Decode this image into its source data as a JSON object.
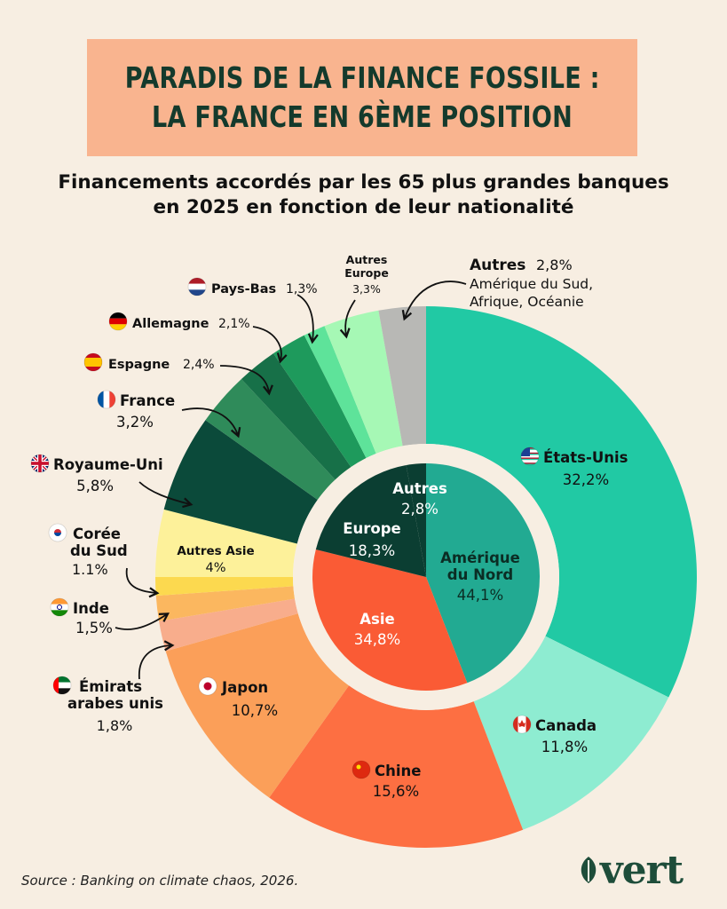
{
  "title": {
    "line1": "PARADIS DE LA FINANCE FOSSILE :",
    "line2": "LA FRANCE EN 6ÈME POSITION"
  },
  "subtitle": {
    "line1": "Financements accordés par les 65 plus grandes banques",
    "line2": "en 2025 en fonction de leur nationalité"
  },
  "source": "Source : Banking on climate chaos, 2026.",
  "logo": {
    "text": "vert"
  },
  "chart_data": {
    "type": "pie",
    "outer_ring": [
      {
        "name": "États-Unis",
        "value": 32.2,
        "value_label": "32,2%",
        "color": "#21c9a4",
        "flag": "us"
      },
      {
        "name": "Canada",
        "value": 11.8,
        "value_label": "11,8%",
        "color": "#8eecd1",
        "flag": "ca"
      },
      {
        "name": "Chine",
        "value": 15.6,
        "value_label": "15,6%",
        "color": "#fd6f42",
        "flag": "cn"
      },
      {
        "name": "Japon",
        "value": 10.7,
        "value_label": "10,7%",
        "color": "#fb9f59",
        "flag": "jp"
      },
      {
        "name": "Émirats arabes unis",
        "value": 1.8,
        "value_label": "1,8%",
        "color": "#f8ad8c",
        "flag": "ae"
      },
      {
        "name": "Inde",
        "value": 1.5,
        "value_label": "1,5%",
        "color": "#fbb75f",
        "flag": "in"
      },
      {
        "name": "Corée du Sud",
        "value": 1.1,
        "value_label": "1.1%",
        "color": "#fcd94f",
        "flag": "kr"
      },
      {
        "name": "Autres Asie",
        "value": 4,
        "value_label": "4%",
        "color": "#fdf19a",
        "flag": ""
      },
      {
        "name": "Royaume-Uni",
        "value": 5.8,
        "value_label": "5,8%",
        "color": "#0b4a3a",
        "flag": "gb"
      },
      {
        "name": "France",
        "value": 3.2,
        "value_label": "3,2%",
        "color": "#2f8b5a",
        "flag": "fr"
      },
      {
        "name": "Espagne",
        "value": 2.4,
        "value_label": "2,4%",
        "color": "#177048",
        "flag": "es"
      },
      {
        "name": "Allemagne",
        "value": 2.1,
        "value_label": "2,1%",
        "color": "#1e9a5c",
        "flag": "de"
      },
      {
        "name": "Pays-Bas",
        "value": 1.3,
        "value_label": "1,3%",
        "color": "#5ee39a",
        "flag": "nl"
      },
      {
        "name": "Autres Europe",
        "value": 3.3,
        "value_label": "3,3%",
        "color": "#a6f8b5",
        "flag": ""
      },
      {
        "name": "Autres",
        "value": 2.8,
        "value_label": "2,8%",
        "color": "#b8b8b5",
        "flag": "",
        "note": "Amérique du Sud, Afrique, Océanie"
      }
    ],
    "inner_ring": [
      {
        "name": "Amérique du Nord",
        "value": 44.1,
        "value_label": "44,1%",
        "color": "#22aa92"
      },
      {
        "name": "Asie",
        "value": 34.8,
        "value_label": "34,8%",
        "color": "#fa5b35"
      },
      {
        "name": "Europe",
        "value": 18.3,
        "value_label": "18,3%",
        "color": "#0b3e32"
      },
      {
        "name": "Autres",
        "value": 2.8,
        "value_label": "2,8%",
        "color": "#0b3e32"
      }
    ]
  }
}
